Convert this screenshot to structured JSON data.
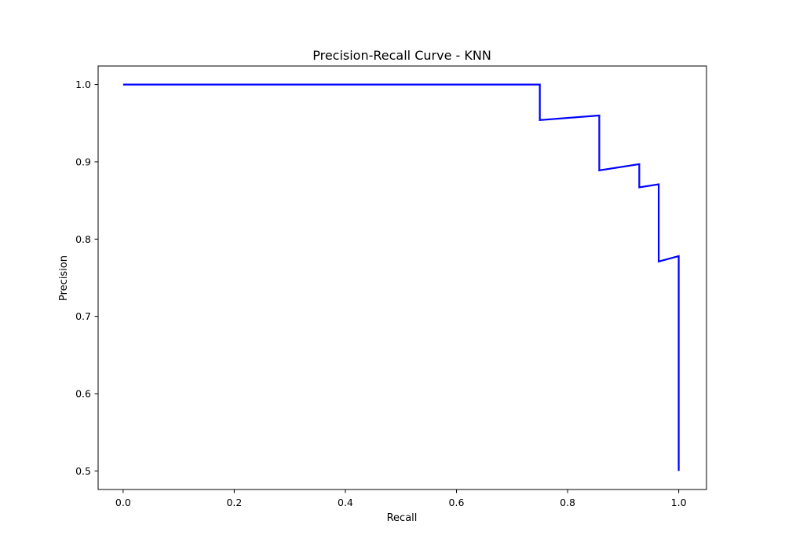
{
  "chart_data": {
    "type": "line",
    "title": "Precision-Recall Curve - KNN",
    "xlabel": "Recall",
    "ylabel": "Precision",
    "xlim": [
      -0.045,
      1.05
    ],
    "ylim": [
      0.476,
      1.024
    ],
    "xticks": [
      0.0,
      0.2,
      0.4,
      0.6,
      0.8,
      1.0
    ],
    "xtick_labels": [
      "0.0",
      "0.2",
      "0.4",
      "0.6",
      "0.8",
      "1.0"
    ],
    "yticks": [
      0.5,
      0.6,
      0.7,
      0.8,
      0.9,
      1.0
    ],
    "ytick_labels": [
      "0.5",
      "0.6",
      "0.7",
      "0.8",
      "0.9",
      "1.0"
    ],
    "grid": false,
    "legend": "none",
    "series": [
      {
        "color": "#0000ff",
        "points": [
          [
            0.0,
            1.0
          ],
          [
            0.75,
            1.0
          ],
          [
            0.75,
            0.954
          ],
          [
            0.857,
            0.96
          ],
          [
            0.857,
            0.889
          ],
          [
            0.929,
            0.897
          ],
          [
            0.929,
            0.867
          ],
          [
            0.964,
            0.871
          ],
          [
            0.964,
            0.771
          ],
          [
            1.0,
            0.778
          ],
          [
            1.0,
            0.5
          ]
        ]
      }
    ]
  }
}
